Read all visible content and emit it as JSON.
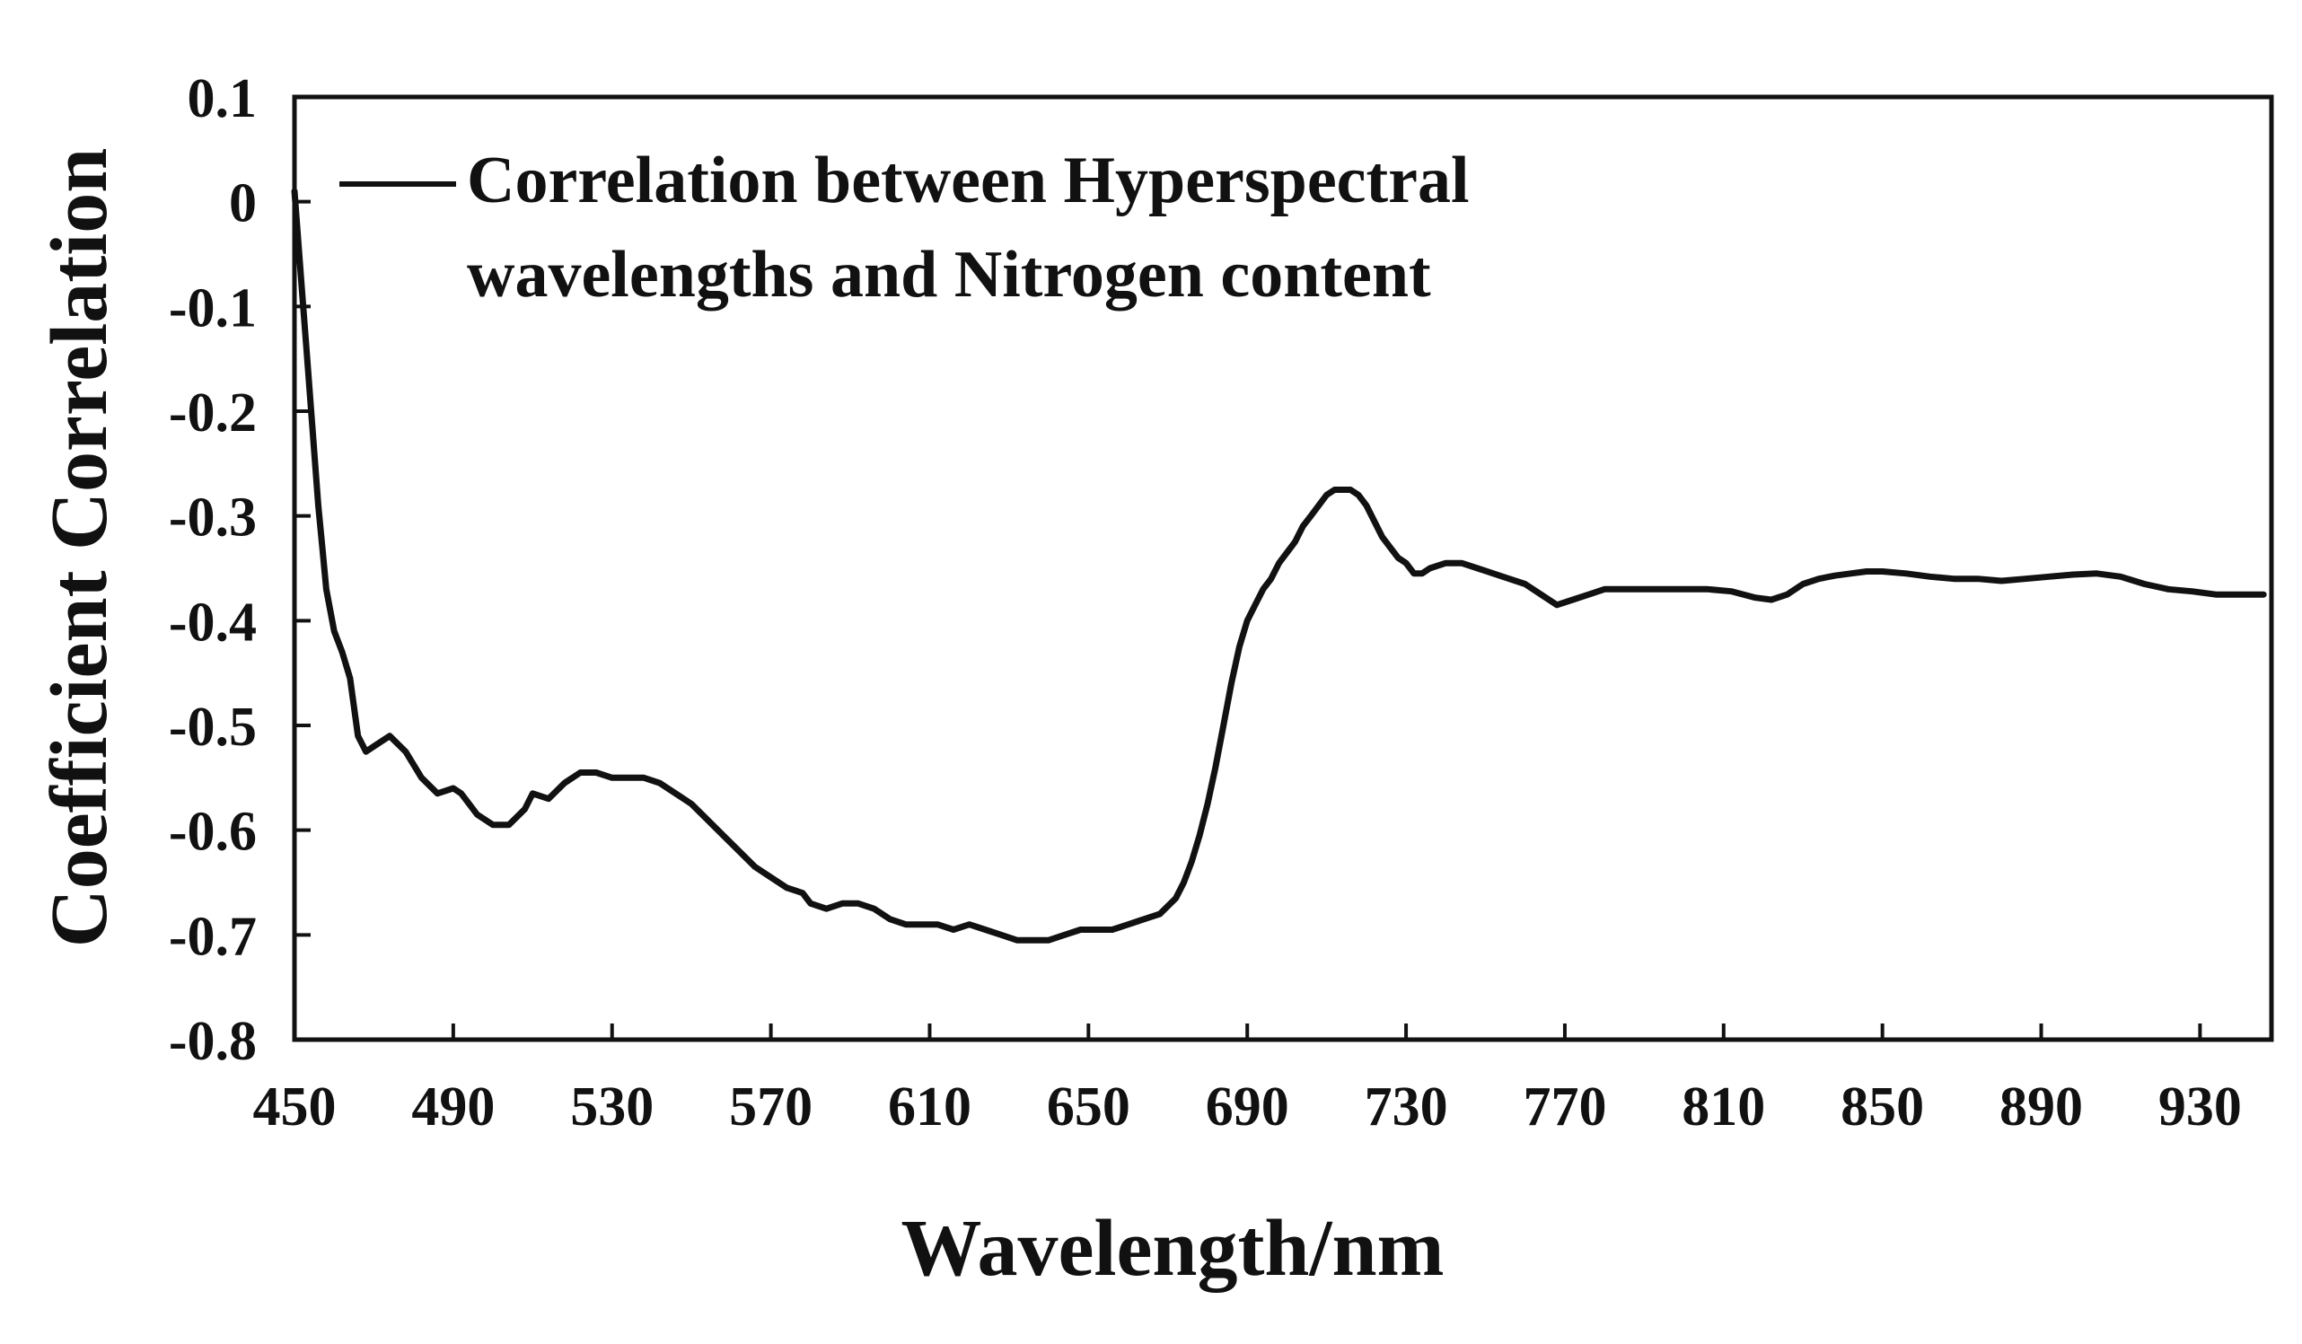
{
  "chart_data": {
    "type": "line",
    "title": "",
    "xlabel": "Wavelength/nm",
    "ylabel": "Coefficient Correlation",
    "xlim": [
      450,
      948
    ],
    "ylim": [
      -0.8,
      0.1
    ],
    "x_ticks": [
      450,
      490,
      530,
      570,
      610,
      650,
      690,
      730,
      770,
      810,
      850,
      890,
      930
    ],
    "y_ticks": [
      0.1,
      0,
      -0.1,
      -0.2,
      -0.3,
      -0.4,
      -0.5,
      -0.6,
      -0.7,
      -0.8
    ],
    "grid": false,
    "legend": {
      "position": "top-left",
      "label_lines": [
        "Correlation between Hyperspectral",
        "wavelengths and Nitrogen content"
      ]
    },
    "series": [
      {
        "name": "Correlation between Hyperspectral wavelengths and Nitrogen content",
        "color": "#111111",
        "x": [
          450,
          451,
          452,
          453,
          454,
          455,
          456,
          457,
          458,
          460,
          462,
          464,
          466,
          468,
          470,
          474,
          478,
          482,
          486,
          490,
          492,
          496,
          500,
          504,
          508,
          510,
          514,
          518,
          522,
          526,
          530,
          534,
          538,
          542,
          546,
          550,
          554,
          558,
          562,
          566,
          570,
          574,
          578,
          580,
          584,
          588,
          592,
          596,
          600,
          604,
          608,
          612,
          616,
          620,
          624,
          628,
          632,
          636,
          640,
          644,
          648,
          652,
          656,
          660,
          664,
          668,
          672,
          674,
          676,
          678,
          680,
          682,
          684,
          686,
          688,
          690,
          692,
          694,
          696,
          698,
          700,
          702,
          704,
          706,
          708,
          710,
          712,
          714,
          716,
          718,
          720,
          722,
          724,
          726,
          728,
          730,
          732,
          734,
          736,
          740,
          744,
          748,
          752,
          756,
          760,
          764,
          768,
          772,
          776,
          780,
          784,
          790,
          796,
          800,
          806,
          812,
          818,
          822,
          826,
          830,
          834,
          838,
          842,
          846,
          850,
          856,
          862,
          868,
          874,
          880,
          886,
          892,
          898,
          904,
          910,
          916,
          922,
          928,
          934,
          940,
          946
        ],
        "values": [
          0.01,
          -0.04,
          -0.09,
          -0.14,
          -0.19,
          -0.24,
          -0.29,
          -0.33,
          -0.37,
          -0.41,
          -0.43,
          -0.455,
          -0.51,
          -0.525,
          -0.52,
          -0.51,
          -0.525,
          -0.55,
          -0.565,
          -0.56,
          -0.565,
          -0.585,
          -0.595,
          -0.595,
          -0.58,
          -0.565,
          -0.57,
          -0.555,
          -0.545,
          -0.545,
          -0.55,
          -0.55,
          -0.55,
          -0.555,
          -0.565,
          -0.575,
          -0.59,
          -0.605,
          -0.62,
          -0.635,
          -0.645,
          -0.655,
          -0.66,
          -0.67,
          -0.675,
          -0.67,
          -0.67,
          -0.675,
          -0.685,
          -0.69,
          -0.69,
          -0.69,
          -0.695,
          -0.69,
          -0.695,
          -0.7,
          -0.705,
          -0.705,
          -0.705,
          -0.7,
          -0.695,
          -0.695,
          -0.695,
          -0.69,
          -0.685,
          -0.68,
          -0.665,
          -0.65,
          -0.63,
          -0.605,
          -0.575,
          -0.54,
          -0.5,
          -0.46,
          -0.425,
          -0.4,
          -0.385,
          -0.37,
          -0.36,
          -0.345,
          -0.335,
          -0.325,
          -0.31,
          -0.3,
          -0.29,
          -0.28,
          -0.275,
          -0.275,
          -0.275,
          -0.28,
          -0.29,
          -0.305,
          -0.32,
          -0.33,
          -0.34,
          -0.345,
          -0.355,
          -0.355,
          -0.35,
          -0.345,
          -0.345,
          -0.35,
          -0.355,
          -0.36,
          -0.365,
          -0.375,
          -0.385,
          -0.38,
          -0.375,
          -0.37,
          -0.37,
          -0.37,
          -0.37,
          -0.37,
          -0.37,
          -0.372,
          -0.378,
          -0.38,
          -0.375,
          -0.365,
          -0.36,
          -0.357,
          -0.355,
          -0.353,
          -0.353,
          -0.355,
          -0.358,
          -0.36,
          -0.36,
          -0.362,
          -0.36,
          -0.358,
          -0.356,
          -0.355,
          -0.358,
          -0.365,
          -0.37,
          -0.372,
          -0.375,
          -0.375,
          -0.375
        ]
      }
    ]
  }
}
